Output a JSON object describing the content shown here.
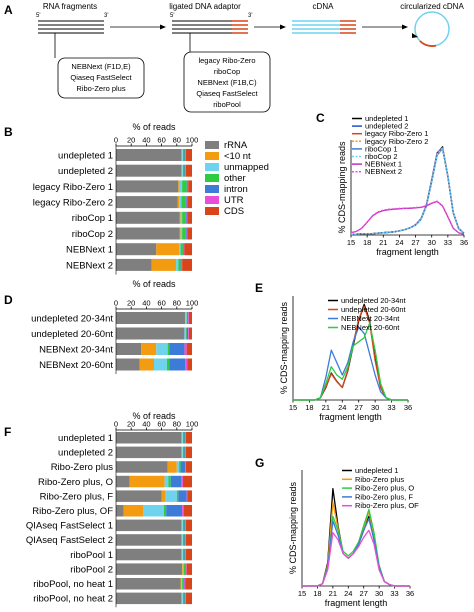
{
  "colors": {
    "rRNA": "#7f7f7f",
    "lt10": "#f39c12",
    "unmapped": "#6fd3ee",
    "other": "#2ecc40",
    "intron": "#3d7bd9",
    "UTR": "#e84fd9",
    "CDS": "#d9451a"
  },
  "panelA": {
    "label": "A",
    "titles": {
      "rna": "RNA fragments",
      "ligated": "ligated DNA adaptor",
      "cdna": "cDNA",
      "circ": "circularized cDNA"
    },
    "ends": {
      "p5a": "5'",
      "p3a": "3'",
      "p5b": "5'",
      "p3b": "3'"
    },
    "box1": [
      "NEBNext (F1D,E)",
      "Qiaseq FastSelect",
      "Ribo-Zero plus"
    ],
    "box2": [
      "legacy Ribo-Zero",
      "riboCop",
      "NEBNext (F1B,C)",
      "Qiaseq FastSelect",
      "riboPool"
    ]
  },
  "chart_data": [
    {
      "id": "B",
      "type": "bar",
      "orientation": "horizontal",
      "stacked": true,
      "title": "% of reads",
      "xlim": [
        0,
        100
      ],
      "ticks": [
        "0",
        "20",
        "40",
        "60",
        "80",
        "100"
      ],
      "categories": [
        "undepleted 1",
        "undepleted 2",
        "legacy Ribo-Zero 1",
        "legacy Ribo-Zero 2",
        "riboCop 1",
        "riboCop 2",
        "NEBNext 1",
        "NEBNext 2"
      ],
      "series": [
        {
          "name": "rRNA",
          "values": [
            86,
            86,
            82,
            81,
            84,
            84,
            53,
            47
          ]
        },
        {
          "name": "<10 nt",
          "values": [
            1,
            1,
            2,
            2,
            1,
            1,
            30,
            32
          ]
        },
        {
          "name": "unmapped",
          "values": [
            1,
            1,
            3,
            3,
            2,
            2,
            2,
            3
          ]
        },
        {
          "name": "other",
          "values": [
            2,
            2,
            6,
            6,
            5,
            5,
            3,
            3
          ]
        },
        {
          "name": "intron",
          "values": [
            1,
            1,
            1,
            1,
            1,
            1,
            1,
            1
          ]
        },
        {
          "name": "UTR",
          "values": [
            1,
            1,
            1,
            1,
            1,
            1,
            1,
            1
          ]
        },
        {
          "name": "CDS",
          "values": [
            8,
            8,
            5,
            6,
            6,
            6,
            10,
            13
          ]
        }
      ]
    },
    {
      "id": "C",
      "type": "line",
      "xlabel": "fragment length",
      "ylabel": "% CDS-mapping reads",
      "xlim": [
        15,
        36
      ],
      "ylim": [
        0,
        21
      ],
      "xticks": [
        "15",
        "18",
        "21",
        "24",
        "27",
        "30",
        "33",
        "36"
      ],
      "x": [
        15,
        16,
        17,
        18,
        19,
        20,
        21,
        22,
        23,
        24,
        25,
        26,
        27,
        28,
        29,
        30,
        31,
        32,
        33,
        34,
        35,
        36
      ],
      "series": [
        {
          "name": "undepleted 1",
          "color": "#000000",
          "dash": "",
          "values": [
            0.2,
            0.2,
            0.3,
            0.3,
            0.3,
            0.4,
            0.5,
            0.6,
            0.7,
            0.9,
            1.2,
            1.6,
            2.2,
            3.5,
            6.5,
            12,
            18,
            19.5,
            13,
            5,
            1.5,
            0.4
          ]
        },
        {
          "name": "undepleted 2",
          "color": "#1f4fd0",
          "dash": "",
          "values": [
            0.2,
            0.2,
            0.3,
            0.3,
            0.3,
            0.4,
            0.5,
            0.6,
            0.7,
            0.9,
            1.2,
            1.6,
            2.3,
            3.6,
            6.6,
            12.2,
            18.2,
            19.3,
            12.8,
            4.9,
            1.4,
            0.4
          ]
        },
        {
          "name": "legacy Ribo-Zero 1",
          "color": "#d9451a",
          "dash": "",
          "values": [
            0.2,
            0.2,
            0.3,
            0.3,
            0.3,
            0.4,
            0.5,
            0.6,
            0.7,
            0.9,
            1.2,
            1.6,
            2.2,
            3.5,
            6.4,
            11.8,
            17.8,
            19.2,
            12.9,
            5,
            1.5,
            0.4
          ]
        },
        {
          "name": "legacy Ribo-Zero 2",
          "color": "#f39c12",
          "dash": "2,1.5",
          "values": [
            0.2,
            0.2,
            0.3,
            0.3,
            0.3,
            0.4,
            0.5,
            0.6,
            0.7,
            0.9,
            1.2,
            1.6,
            2.2,
            3.5,
            6.4,
            11.9,
            17.9,
            19.3,
            12.9,
            5,
            1.5,
            0.4
          ]
        },
        {
          "name": "riboCop 1",
          "color": "#3d7bd9",
          "dash": "",
          "values": [
            0.2,
            0.2,
            0.3,
            0.3,
            0.3,
            0.4,
            0.5,
            0.6,
            0.7,
            0.9,
            1.2,
            1.6,
            2.2,
            3.4,
            6.3,
            11.7,
            17.6,
            19.1,
            13,
            5.1,
            1.5,
            0.4
          ]
        },
        {
          "name": "riboCop 2",
          "color": "#6fd3ee",
          "dash": "2,1.5",
          "values": [
            0.2,
            0.2,
            0.3,
            0.3,
            0.3,
            0.4,
            0.5,
            0.6,
            0.7,
            0.9,
            1.2,
            1.6,
            2.2,
            3.4,
            6.3,
            11.7,
            17.7,
            19.2,
            13,
            5.1,
            1.5,
            0.4
          ]
        },
        {
          "name": "NEBNext 1",
          "color": "#c030c0",
          "dash": "",
          "values": [
            0.5,
            0.8,
            1.5,
            2.8,
            4.2,
            5,
            5.4,
            5.6,
            5.7,
            5.8,
            5.9,
            5.9,
            6,
            6.1,
            6.4,
            7,
            7.4,
            6.4,
            4,
            1.5,
            0.5,
            0.2
          ]
        },
        {
          "name": "NEBNext 2",
          "color": "#e84fd9",
          "dash": "2,1.5",
          "values": [
            0.5,
            0.8,
            1.5,
            2.8,
            4.3,
            5.1,
            5.5,
            5.7,
            5.8,
            5.9,
            5.9,
            6,
            6.1,
            6.2,
            6.5,
            7.1,
            7.5,
            6.5,
            4.1,
            1.5,
            0.5,
            0.2
          ]
        }
      ]
    },
    {
      "id": "D",
      "type": "bar",
      "orientation": "horizontal",
      "stacked": true,
      "title": "% of reads",
      "xlim": [
        0,
        100
      ],
      "ticks": [
        "0",
        "20",
        "40",
        "60",
        "80",
        "100"
      ],
      "categories": [
        "undepleted 20-34nt",
        "undepleted 20-60nt",
        "NEBNext 20-34nt",
        "NEBNext 20-60nt"
      ],
      "series": [
        {
          "name": "rRNA",
          "values": [
            91,
            90,
            33,
            31
          ]
        },
        {
          "name": "<10 nt",
          "values": [
            0,
            0,
            20,
            19
          ]
        },
        {
          "name": "unmapped",
          "values": [
            2,
            2,
            15,
            17
          ]
        },
        {
          "name": "other",
          "values": [
            1,
            1,
            2,
            3
          ]
        },
        {
          "name": "intron",
          "values": [
            1,
            2,
            20,
            21
          ]
        },
        {
          "name": "UTR",
          "values": [
            1,
            1,
            3,
            3
          ]
        },
        {
          "name": "CDS",
          "values": [
            4,
            4,
            7,
            6
          ]
        }
      ]
    },
    {
      "id": "E",
      "type": "line",
      "xlabel": "fragment length",
      "ylabel": "% CDS-mapping reads",
      "xlim": [
        15,
        36
      ],
      "ylim": [
        0,
        25
      ],
      "xticks": [
        "15",
        "18",
        "21",
        "24",
        "27",
        "30",
        "33",
        "36"
      ],
      "x": [
        15,
        16,
        17,
        18,
        19,
        20,
        21,
        22,
        23,
        24,
        25,
        26,
        27,
        28,
        29,
        30,
        31,
        32,
        33,
        34,
        35,
        36
      ],
      "series": [
        {
          "name": "undepleted 20-34nt",
          "color": "#000000",
          "dash": "",
          "values": [
            0,
            0,
            0,
            0,
            0,
            0.5,
            3,
            6.5,
            4.5,
            3,
            7,
            13,
            19,
            23,
            19,
            10,
            3,
            0.5,
            0,
            0,
            0,
            0
          ]
        },
        {
          "name": "undepleted 20-60nt",
          "color": "#d9451a",
          "dash": "",
          "values": [
            0,
            0,
            0,
            0,
            0,
            0.5,
            3.2,
            6.3,
            4.4,
            3,
            7.2,
            13.5,
            19.5,
            22.5,
            18.5,
            9.5,
            3,
            0.5,
            0,
            0,
            0,
            0
          ]
        },
        {
          "name": "NEBNext 20-34nt",
          "color": "#3d7bd9",
          "dash": "",
          "values": [
            0,
            0,
            0,
            0,
            0,
            0.5,
            5.5,
            12,
            9,
            6,
            9,
            14,
            17.5,
            16,
            11,
            6,
            2,
            0.5,
            0,
            0,
            0,
            0
          ]
        },
        {
          "name": "NEBNext 20-60nt",
          "color": "#2ecc40",
          "dash": "",
          "values": [
            0,
            0,
            0,
            0,
            0,
            0.5,
            4,
            8,
            6,
            5,
            8,
            13,
            14,
            15,
            18.5,
            12,
            4,
            0.5,
            0,
            0,
            0,
            0
          ]
        }
      ]
    },
    {
      "id": "F",
      "type": "bar",
      "orientation": "horizontal",
      "stacked": true,
      "title": "% of reads",
      "xlim": [
        0,
        100
      ],
      "ticks": [
        "0",
        "20",
        "40",
        "60",
        "80",
        "100"
      ],
      "categories": [
        "undepleted 1",
        "undepleted 2",
        "Ribo-Zero plus",
        "Ribo-Zero plus, O",
        "Ribo-Zero plus, F",
        "Ribo-Zero plus, OF",
        "QIAseq FastSelect 1",
        "QIAseq FastSelect 2",
        "riboPool 1",
        "riboPool 2",
        "riboPool, no heat 1",
        "riboPool, no heat 2"
      ],
      "series": [
        {
          "name": "rRNA",
          "values": [
            86,
            86,
            68,
            18,
            60,
            10,
            86,
            86,
            86,
            87,
            85,
            86
          ]
        },
        {
          "name": "<10 nt",
          "values": [
            1,
            1,
            12,
            46,
            5,
            26,
            1,
            1,
            1,
            1,
            1,
            1
          ]
        },
        {
          "name": "unmapped",
          "values": [
            1,
            1,
            3,
            5,
            15,
            27,
            1,
            1,
            1,
            1,
            1,
            1
          ]
        },
        {
          "name": "other",
          "values": [
            2,
            2,
            2,
            3,
            2,
            3,
            2,
            2,
            2,
            2,
            2,
            2
          ]
        },
        {
          "name": "intron",
          "values": [
            1,
            1,
            6,
            14,
            11,
            21,
            1,
            1,
            1,
            1,
            1,
            1
          ]
        },
        {
          "name": "UTR",
          "values": [
            1,
            1,
            1,
            2,
            1,
            2,
            1,
            1,
            1,
            1,
            1,
            1
          ]
        },
        {
          "name": "CDS",
          "values": [
            8,
            8,
            8,
            12,
            6,
            11,
            8,
            8,
            8,
            7,
            9,
            8
          ]
        }
      ]
    },
    {
      "id": "G",
      "type": "line",
      "xlabel": "fragment length",
      "ylabel": "% CDS-mapping reads",
      "xlim": [
        15,
        36
      ],
      "ylim": [
        0,
        25
      ],
      "xticks": [
        "15",
        "18",
        "21",
        "24",
        "27",
        "30",
        "33",
        "36"
      ],
      "x": [
        15,
        16,
        17,
        18,
        19,
        20,
        21,
        22,
        23,
        24,
        25,
        26,
        27,
        28,
        29,
        30,
        31,
        32,
        33,
        34,
        35,
        36
      ],
      "series": [
        {
          "name": "undepleted 1",
          "color": "#000000",
          "dash": "",
          "values": [
            0,
            0,
            0,
            0,
            0.5,
            5,
            21,
            13,
            7,
            6,
            7,
            9,
            12,
            15,
            10,
            4,
            1,
            0.3,
            0,
            0,
            0,
            0
          ]
        },
        {
          "name": "Ribo-Zero plus",
          "color": "#f39c12",
          "dash": "",
          "values": [
            0,
            0,
            0,
            0,
            0.5,
            4.5,
            18,
            12.5,
            7,
            6,
            7,
            9,
            12.5,
            16,
            11,
            4,
            1,
            0.3,
            0,
            0,
            0,
            0
          ]
        },
        {
          "name": "Ribo-Zero plus, O",
          "color": "#2ecc40",
          "dash": "",
          "values": [
            0,
            0,
            0,
            0,
            0.5,
            4,
            15,
            12,
            7.5,
            6.5,
            7.5,
            9.5,
            13,
            16.5,
            11.5,
            4.5,
            1,
            0.3,
            0,
            0,
            0,
            0
          ]
        },
        {
          "name": "Ribo-Zero plus, F",
          "color": "#3d7bd9",
          "dash": "",
          "values": [
            0,
            0,
            0,
            0,
            0.5,
            4,
            14,
            11,
            7,
            6,
            7,
            9,
            12,
            14.5,
            10,
            4,
            1,
            0.3,
            0,
            0,
            0,
            0
          ]
        },
        {
          "name": "Ribo-Zero plus, OF",
          "color": "#e84fd9",
          "dash": "",
          "values": [
            0,
            0,
            0,
            0,
            0.5,
            3.5,
            11.5,
            10,
            7,
            6,
            7,
            8.5,
            10.5,
            12,
            9,
            3.5,
            1,
            0.3,
            0,
            0,
            0,
            0
          ]
        }
      ]
    }
  ],
  "legend_B": [
    "rRNA",
    "<10 nt",
    "unmapped",
    "other",
    "intron",
    "UTR",
    "CDS"
  ]
}
